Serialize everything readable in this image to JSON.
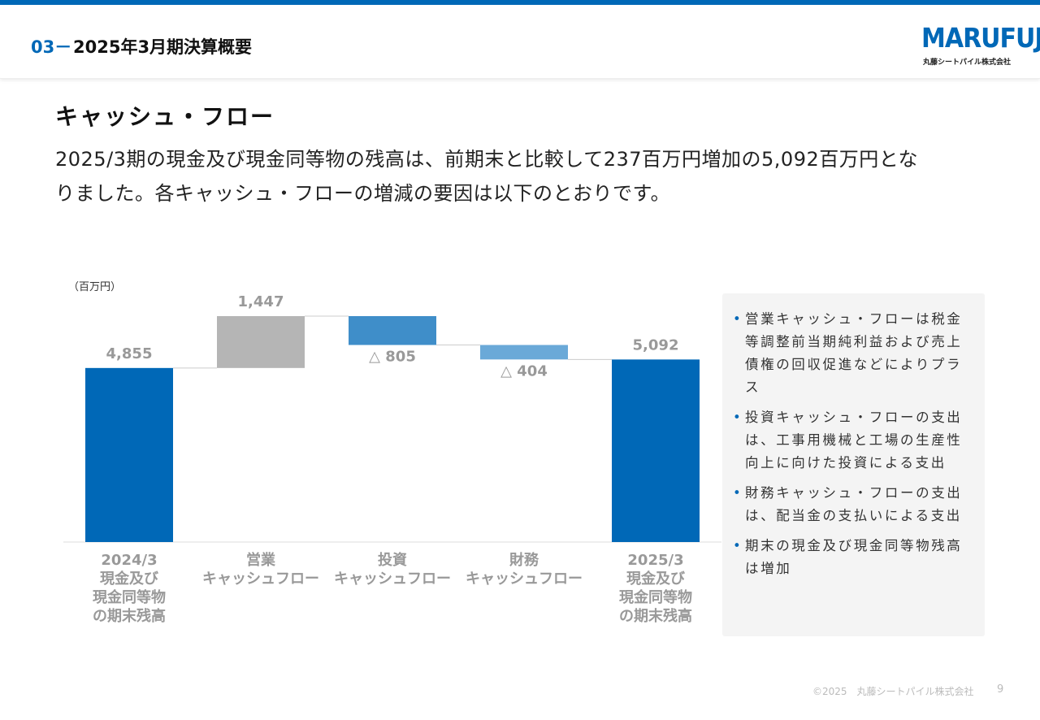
{
  "header": {
    "number": "03－",
    "title": "2025年3月期決算概要"
  },
  "logo": {
    "name": "MARUFUJI",
    "sub": "丸藤シートパイル株式会社"
  },
  "heading": "キャッシュ・フロー",
  "body": [
    "2025/3期の現金及び現金同等物の残高は、前期末と比較して237百万円増加の5,092百万円とな",
    "りました。各キャッシュ・フローの増減の要因は以下のとおりです。"
  ],
  "chart_data": {
    "type": "waterfall",
    "unit": "（百万円）",
    "categories": [
      "2024/3\n現金及び\n現金同等物\nの期末残高",
      "営業\nキャッシュフロー",
      "投資\nキャッシュフロー",
      "財務\nキャッシュフロー",
      "2025/3\n現金及び\n現金同等物\nの期末残高"
    ],
    "values": [
      4855,
      1447,
      -805,
      -404,
      5092
    ],
    "value_labels": [
      "4,855",
      "1,447",
      "△ 805",
      "△ 404",
      "5,092"
    ],
    "colors": [
      "#0068b7",
      "#b5b5b5",
      "#3f8ec9",
      "#6aa9d8",
      "#0068b7"
    ]
  },
  "notes": [
    "営業キャッシュ・フローは税金等調整前当期純利益および売上債権の回収促進などによりプラス",
    "投資キャッシュ・フローの支出は、工事用機械と工場の生産性向上に向けた投資による支出",
    "財務キャッシュ・フローの支出は、配当金の支払いによる支出",
    "期末の現金及び現金同等物残高は増加"
  ],
  "footer": {
    "copyright": "©2025　丸藤シートパイル株式会社",
    "page": 9
  }
}
